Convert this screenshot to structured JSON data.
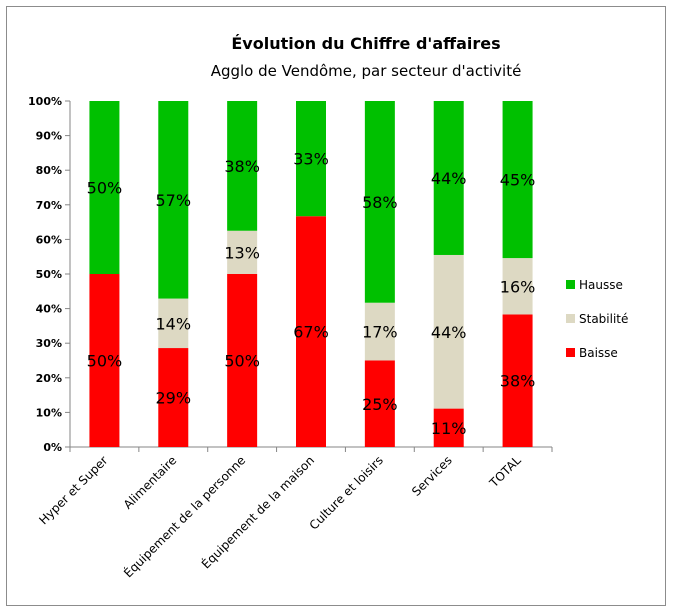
{
  "chart_data": {
    "type": "bar",
    "stacked": true,
    "title": "Évolution du Chiffre d'affaires",
    "subtitle": "Agglo de Vendôme, par secteur d'activité",
    "categories": [
      "Hyper et Super",
      "Alimentaire",
      "Équipement de la personne",
      "Équipement de la maison",
      "Culture et loisirs",
      "Services",
      "TOTAL"
    ],
    "y_ticks": [
      "0%",
      "10%",
      "20%",
      "30%",
      "40%",
      "50%",
      "60%",
      "70%",
      "80%",
      "90%",
      "100%"
    ],
    "ylim": [
      0,
      100
    ],
    "grid": false,
    "legend_position": "right",
    "series": [
      {
        "name": "Baisse",
        "color": "#ff0000",
        "values": [
          50,
          28.6,
          50,
          66.7,
          25,
          11.1,
          38.3
        ],
        "labels": [
          "50%",
          "29%",
          "50%",
          "67%",
          "25%",
          "11%",
          "38%"
        ]
      },
      {
        "name": "Stabilité",
        "color": "#ddd9c3",
        "values": [
          0,
          14.3,
          12.5,
          0,
          16.7,
          44.4,
          16.3
        ],
        "labels": [
          "",
          "14%",
          "13%",
          "",
          "17%",
          "44%",
          "16%"
        ]
      },
      {
        "name": "Hausse",
        "color": "#00c000",
        "values": [
          50,
          57.1,
          37.5,
          33.3,
          58.3,
          44.5,
          45.4
        ],
        "labels": [
          "50%",
          "57%",
          "38%",
          "33%",
          "58%",
          "44%",
          "45%"
        ]
      }
    ],
    "legend_order": [
      "Hausse",
      "Stabilité",
      "Baisse"
    ]
  }
}
